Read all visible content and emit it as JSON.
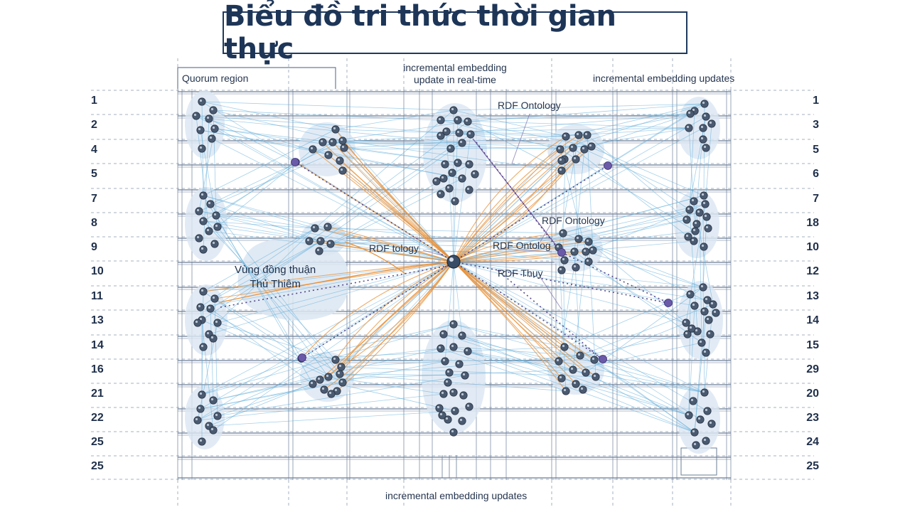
{
  "title": "Biểu đồ tri thức thời gian thực",
  "labels": {
    "quorum_region": "Quorum region",
    "top_center": [
      "incremental embedding",
      "update in real-time"
    ],
    "top_right": "incremental embedding updates",
    "bottom": "incremental embedding updates",
    "rdf_ontology_top": "RDF Ontology",
    "rdf_ontology_mid": "RDF Ontology",
    "rdf_ontolog": "RDF Ontolog",
    "rdf_tology": "RDF tology",
    "rdf_thuy": "RDF Thuy",
    "consensus_zone": [
      "Vùng đồng thuận",
      "Thủ Thiêm"
    ]
  },
  "left_row_numbers": [
    "1",
    "2",
    "4",
    "5",
    "7",
    "8",
    "9",
    "10",
    "11",
    "13",
    "14",
    "16",
    "21",
    "22",
    "25",
    "25"
  ],
  "right_row_numbers": [
    "1",
    "3",
    "5",
    "6",
    "7",
    "18",
    "10",
    "12",
    "13",
    "14",
    "15",
    "29",
    "20",
    "23",
    "24",
    "25"
  ],
  "colors": {
    "node": "#4a5a70",
    "cluster_fill": "#dbe6f2",
    "edge_blue": "#5aaad8",
    "edge_orange": "#e8913a",
    "edge_purple_dotted": "#3c2e7a",
    "grid": "#6a7d96",
    "hub": "#3a4d66"
  }
}
